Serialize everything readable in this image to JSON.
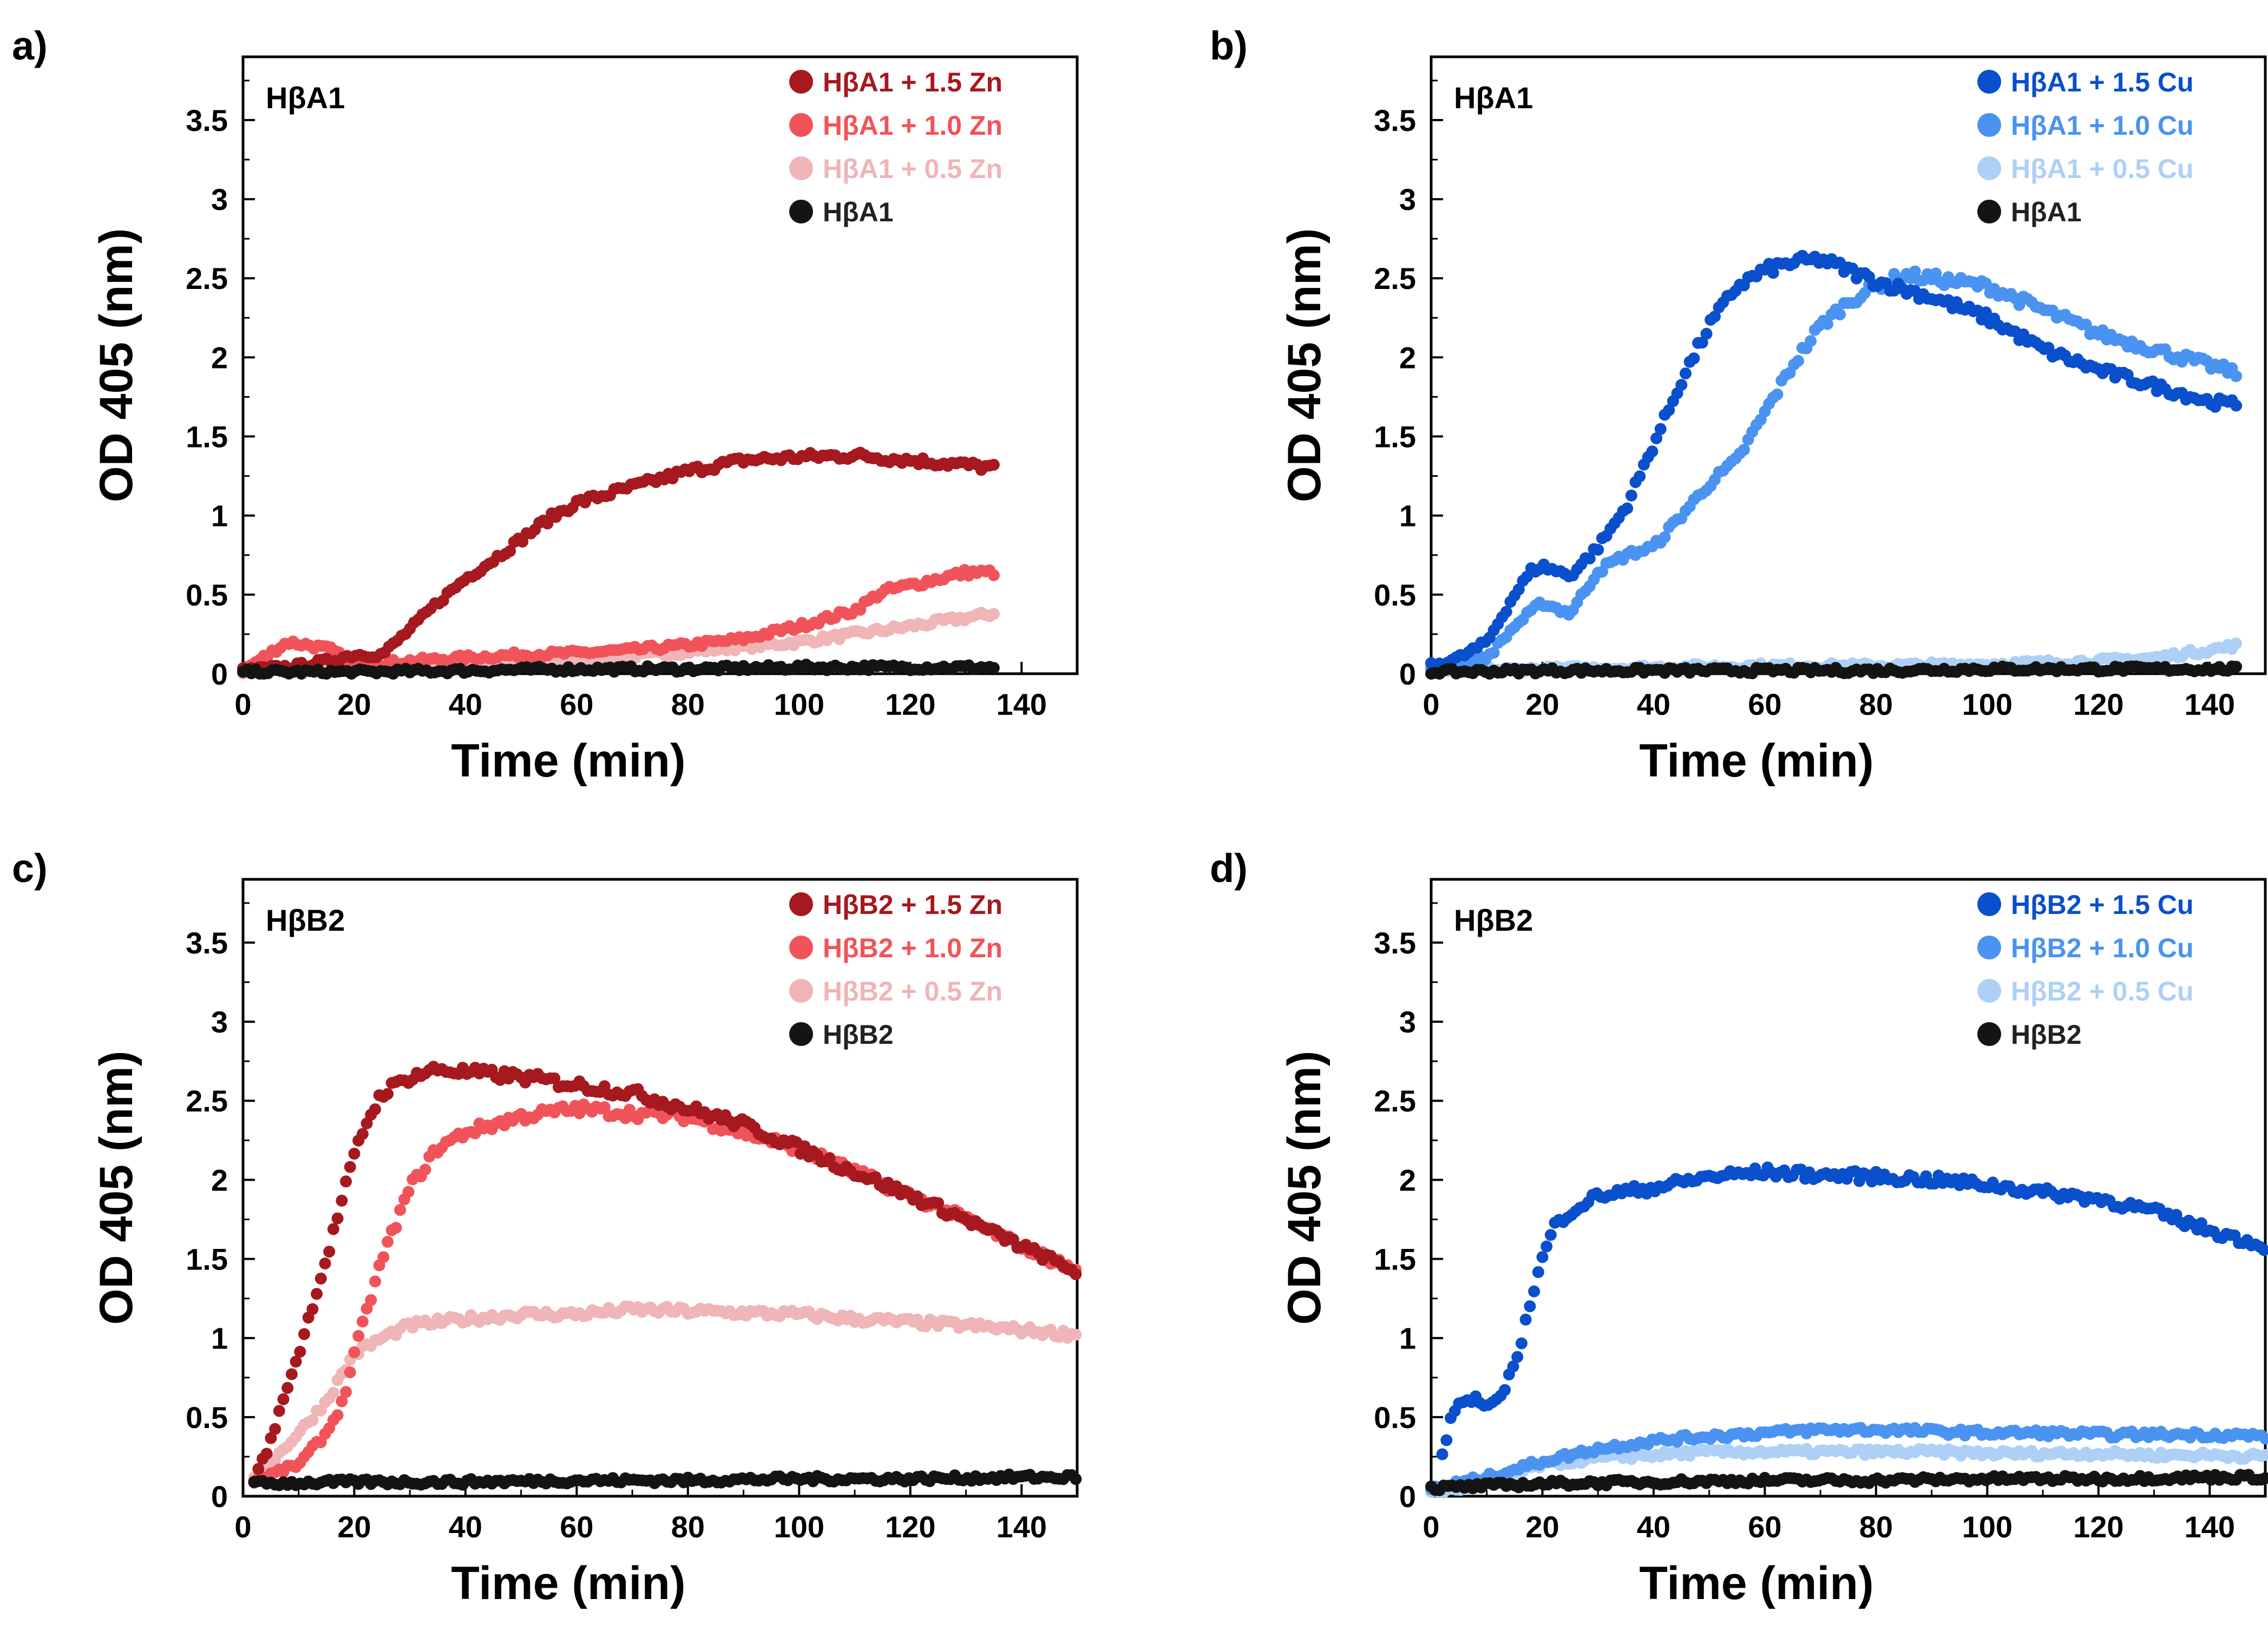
{
  "chart_data": [
    {
      "type": "scatter",
      "panel": "a)",
      "title": "HβA1",
      "xlabel": "Time (min)",
      "ylabel": "OD 405 (nm)",
      "xlim": [
        0,
        150
      ],
      "ylim": [
        0,
        3.9
      ],
      "xticks": [
        "0",
        "20",
        "40",
        "60",
        "80",
        "100",
        "120",
        "140"
      ],
      "yticks": [
        "0",
        "0.5",
        "1",
        "1.5",
        "2",
        "2.5",
        "3",
        "3.5"
      ],
      "legend_position": "top-right",
      "series": [
        {
          "name": "HβA1 + 1.5 Zn",
          "color": "#a5191f",
          "x": [
            0,
            10,
            15,
            20,
            25,
            30,
            35,
            40,
            45,
            50,
            55,
            60,
            70,
            80,
            90,
            100,
            110,
            120,
            130,
            135
          ],
          "y": [
            0.02,
            0.05,
            0.08,
            0.12,
            0.12,
            0.28,
            0.45,
            0.6,
            0.72,
            0.85,
            0.98,
            1.08,
            1.18,
            1.28,
            1.35,
            1.37,
            1.38,
            1.35,
            1.32,
            1.3
          ]
        },
        {
          "name": "HβA1 + 1.0 Zn",
          "color": "#f0545a",
          "x": [
            0,
            8,
            12,
            16,
            20,
            30,
            40,
            50,
            60,
            70,
            80,
            90,
            100,
            110,
            115,
            120,
            125,
            130,
            135
          ],
          "y": [
            0.02,
            0.2,
            0.18,
            0.15,
            0.05,
            0.08,
            0.1,
            0.12,
            0.13,
            0.15,
            0.18,
            0.22,
            0.3,
            0.4,
            0.52,
            0.56,
            0.6,
            0.64,
            0.64
          ]
        },
        {
          "name": "HβA1 + 0.5 Zn",
          "color": "#efb5b7",
          "x": [
            0,
            20,
            40,
            60,
            80,
            100,
            120,
            135
          ],
          "y": [
            0.02,
            0.03,
            0.05,
            0.08,
            0.14,
            0.2,
            0.3,
            0.38
          ]
        },
        {
          "name": "HβA1",
          "color": "#141414",
          "x": [
            0,
            20,
            40,
            60,
            80,
            100,
            120,
            135
          ],
          "y": [
            0.01,
            0.01,
            0.02,
            0.03,
            0.03,
            0.04,
            0.04,
            0.04
          ]
        }
      ]
    },
    {
      "type": "scatter",
      "panel": "b)",
      "title": "HβA1",
      "xlabel": "Time (min)",
      "ylabel": "OD 405 (nm)",
      "xlim": [
        0,
        150
      ],
      "ylim": [
        0,
        3.9
      ],
      "xticks": [
        "0",
        "20",
        "40",
        "60",
        "80",
        "100",
        "120",
        "140"
      ],
      "yticks": [
        "0",
        "0.5",
        "1",
        "1.5",
        "2",
        "2.5",
        "3",
        "3.5"
      ],
      "legend_position": "top-right",
      "series": [
        {
          "name": "HβA1 + 1.5 Cu",
          "color": "#0a4fcc",
          "x": [
            0,
            5,
            10,
            15,
            18,
            20,
            25,
            30,
            35,
            40,
            45,
            50,
            55,
            60,
            65,
            70,
            75,
            80,
            90,
            100,
            110,
            120,
            130,
            140,
            145
          ],
          "y": [
            0.05,
            0.1,
            0.2,
            0.5,
            0.65,
            0.68,
            0.62,
            0.8,
            1.05,
            1.45,
            1.85,
            2.2,
            2.45,
            2.55,
            2.6,
            2.62,
            2.55,
            2.48,
            2.38,
            2.25,
            2.05,
            1.92,
            1.82,
            1.72,
            1.7
          ]
        },
        {
          "name": "HβA1 + 1.0 Cu",
          "color": "#4a93f0",
          "x": [
            0,
            10,
            15,
            20,
            25,
            30,
            35,
            40,
            45,
            50,
            55,
            60,
            65,
            70,
            75,
            80,
            85,
            90,
            100,
            110,
            120,
            130,
            140,
            145
          ],
          "y": [
            0.02,
            0.1,
            0.3,
            0.45,
            0.38,
            0.65,
            0.75,
            0.8,
            1.0,
            1.2,
            1.35,
            1.65,
            1.95,
            2.2,
            2.35,
            2.45,
            2.52,
            2.5,
            2.45,
            2.3,
            2.15,
            2.05,
            1.95,
            1.9
          ]
        },
        {
          "name": "HβA1 + 0.5 Cu",
          "color": "#aed0f6",
          "x": [
            0,
            20,
            40,
            60,
            80,
            100,
            120,
            130,
            140,
            145
          ],
          "y": [
            0.02,
            0.03,
            0.04,
            0.05,
            0.05,
            0.06,
            0.08,
            0.1,
            0.15,
            0.18
          ]
        },
        {
          "name": "HβA1",
          "color": "#141414",
          "x": [
            0,
            20,
            40,
            60,
            80,
            100,
            120,
            145
          ],
          "y": [
            0.01,
            0.02,
            0.02,
            0.02,
            0.02,
            0.03,
            0.03,
            0.03
          ]
        }
      ]
    },
    {
      "type": "scatter",
      "panel": "c)",
      "title": "HβB2",
      "xlabel": "Time (min)",
      "ylabel": "OD 405 (nm)",
      "xlim": [
        0,
        150
      ],
      "ylim": [
        0,
        3.9
      ],
      "xticks": [
        "0",
        "20",
        "40",
        "60",
        "80",
        "100",
        "120",
        "140"
      ],
      "yticks": [
        "0",
        "0.5",
        "1",
        "1.5",
        "2",
        "2.5",
        "3",
        "3.5"
      ],
      "legend_position": "top-right",
      "series": [
        {
          "name": "HβB2 + 1.5 Zn",
          "color": "#a5191f",
          "x": [
            2,
            5,
            8,
            10,
            12,
            15,
            18,
            20,
            22,
            25,
            30,
            35,
            40,
            50,
            60,
            70,
            80,
            90,
            100,
            110,
            120,
            130,
            140,
            150
          ],
          "y": [
            0.1,
            0.35,
            0.7,
            0.9,
            1.15,
            1.5,
            1.9,
            2.15,
            2.35,
            2.55,
            2.65,
            2.7,
            2.68,
            2.65,
            2.6,
            2.55,
            2.45,
            2.35,
            2.2,
            2.05,
            1.9,
            1.75,
            1.58,
            1.42
          ]
        },
        {
          "name": "HβB2 + 1.0 Zn",
          "color": "#f0545a",
          "x": [
            2,
            10,
            15,
            18,
            20,
            25,
            30,
            35,
            40,
            50,
            60,
            70,
            80,
            90,
            100,
            110,
            120,
            130,
            140,
            150
          ],
          "y": [
            0.1,
            0.2,
            0.4,
            0.6,
            0.9,
            1.5,
            1.95,
            2.2,
            2.3,
            2.4,
            2.45,
            2.42,
            2.4,
            2.3,
            2.2,
            2.05,
            1.9,
            1.75,
            1.58,
            1.42
          ]
        },
        {
          "name": "HβB2 + 0.5 Zn",
          "color": "#efb5b7",
          "x": [
            2,
            10,
            15,
            20,
            25,
            30,
            40,
            50,
            60,
            70,
            80,
            90,
            100,
            110,
            120,
            130,
            140,
            150
          ],
          "y": [
            0.1,
            0.4,
            0.6,
            0.9,
            1.0,
            1.08,
            1.12,
            1.15,
            1.15,
            1.18,
            1.17,
            1.16,
            1.15,
            1.12,
            1.1,
            1.08,
            1.05,
            1.02
          ]
        },
        {
          "name": "HβB2",
          "color": "#141414",
          "x": [
            2,
            20,
            40,
            60,
            80,
            100,
            120,
            140,
            150
          ],
          "y": [
            0.08,
            0.09,
            0.09,
            0.1,
            0.1,
            0.11,
            0.11,
            0.12,
            0.12
          ]
        }
      ]
    },
    {
      "type": "scatter",
      "panel": "d)",
      "title": "HβB2",
      "xlabel": "Time (min)",
      "ylabel": "OD 405 (nm)",
      "xlim": [
        0,
        150
      ],
      "ylim": [
        0,
        3.9
      ],
      "xticks": [
        "0",
        "20",
        "40",
        "60",
        "80",
        "100",
        "120",
        "140"
      ],
      "yticks": [
        "0",
        "0.5",
        "1",
        "1.5",
        "2",
        "2.5",
        "3",
        "3.5"
      ],
      "legend_position": "top-right",
      "series": [
        {
          "name": "HβB2 + 1.5 Cu",
          "color": "#0a4fcc",
          "x": [
            2,
            4,
            6,
            8,
            10,
            12,
            14,
            16,
            18,
            20,
            22,
            25,
            30,
            40,
            50,
            60,
            70,
            80,
            90,
            100,
            110,
            120,
            130,
            140,
            150
          ],
          "y": [
            0.25,
            0.55,
            0.6,
            0.62,
            0.55,
            0.6,
            0.75,
            0.95,
            1.25,
            1.5,
            1.7,
            1.8,
            1.9,
            1.95,
            2.02,
            2.05,
            2.03,
            2.02,
            2.0,
            1.97,
            1.92,
            1.88,
            1.8,
            1.68,
            1.58
          ]
        },
        {
          "name": "HβB2 + 1.0 Cu",
          "color": "#4a93f0",
          "x": [
            0,
            10,
            20,
            30,
            40,
            50,
            60,
            70,
            80,
            90,
            100,
            110,
            120,
            130,
            140,
            150
          ],
          "y": [
            0.05,
            0.12,
            0.22,
            0.3,
            0.35,
            0.38,
            0.4,
            0.42,
            0.42,
            0.41,
            0.4,
            0.4,
            0.39,
            0.39,
            0.39,
            0.38
          ]
        },
        {
          "name": "HβB2 + 0.5 Cu",
          "color": "#aed0f6",
          "x": [
            0,
            10,
            20,
            30,
            40,
            50,
            60,
            70,
            80,
            90,
            100,
            110,
            120,
            130,
            140,
            150
          ],
          "y": [
            0.02,
            0.08,
            0.2,
            0.24,
            0.26,
            0.28,
            0.28,
            0.28,
            0.28,
            0.28,
            0.27,
            0.27,
            0.27,
            0.26,
            0.26,
            0.25
          ]
        },
        {
          "name": "HβB2",
          "color": "#141414",
          "x": [
            0,
            20,
            40,
            60,
            80,
            100,
            120,
            140,
            150
          ],
          "y": [
            0.05,
            0.08,
            0.09,
            0.1,
            0.1,
            0.11,
            0.11,
            0.12,
            0.12
          ]
        }
      ]
    }
  ]
}
